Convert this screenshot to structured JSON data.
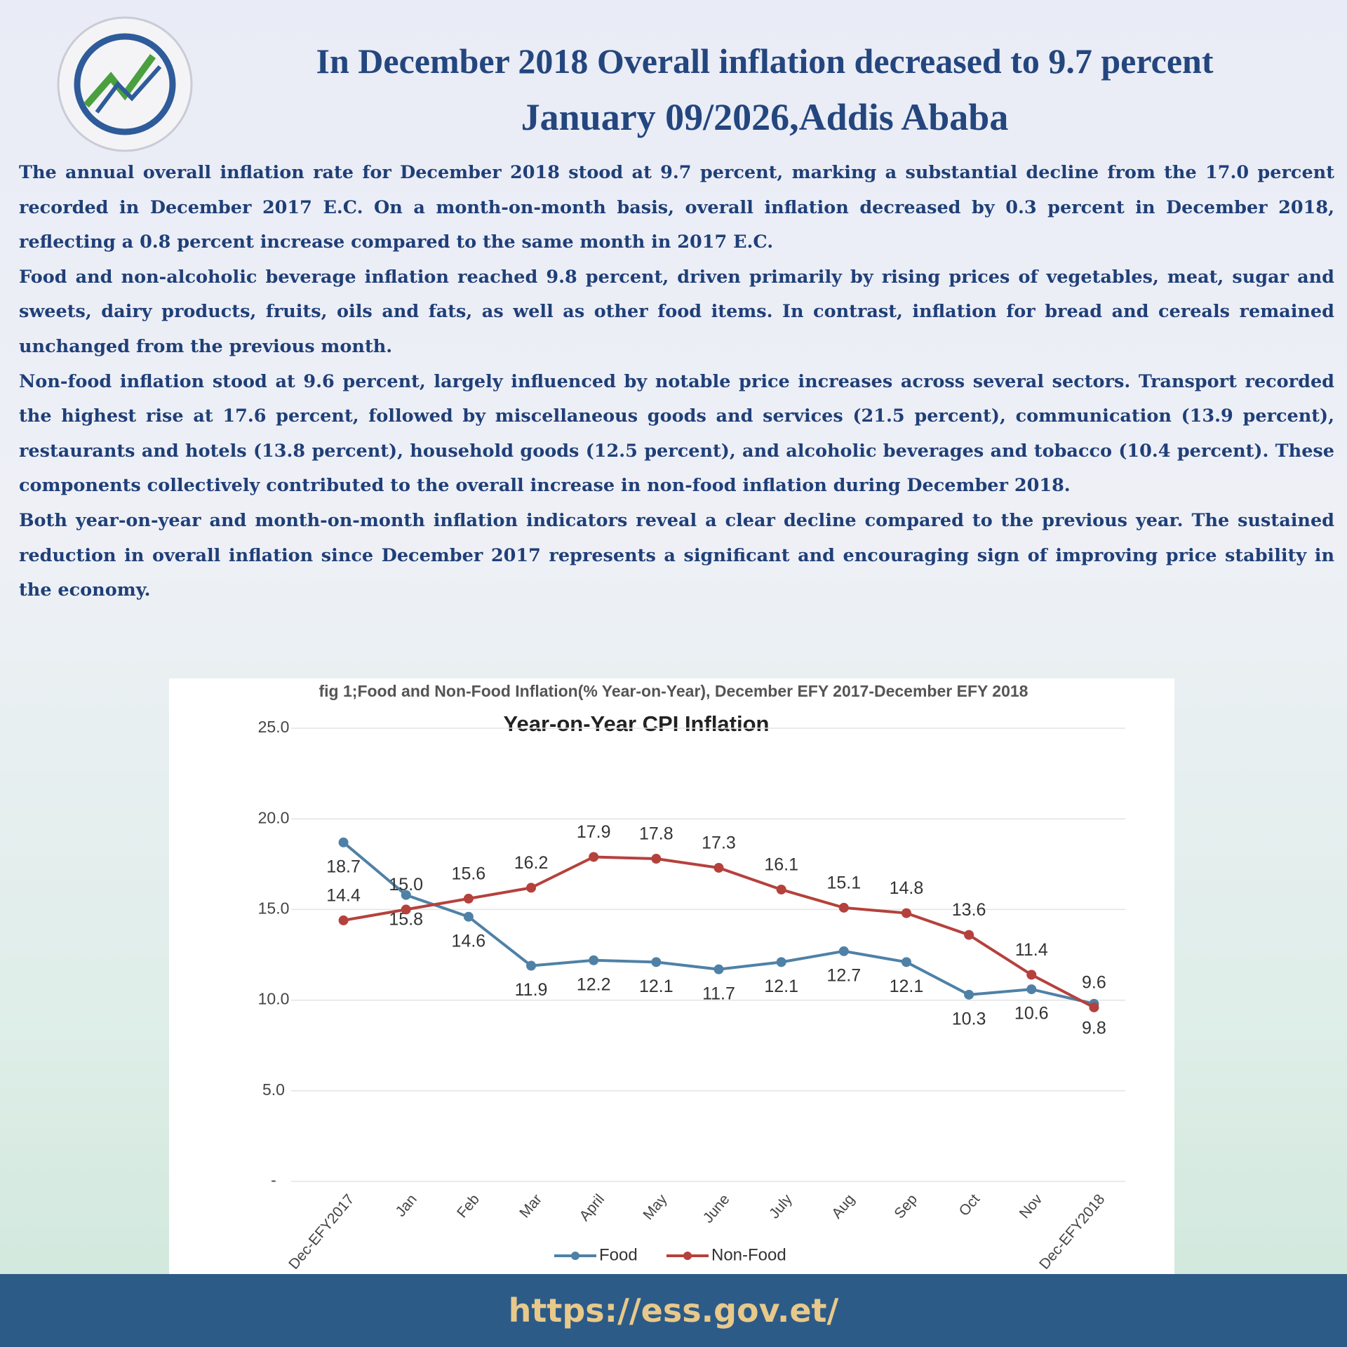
{
  "header": {
    "title": "In December 2018 Overall inflation decreased to 9.7 percent",
    "dateline": "January  09/2026,Addis Ababa"
  },
  "body": {
    "paragraphs": [
      "The annual overall inflation rate for December 2018 stood at 9.7 percent, marking a substantial decline from the 17.0 percent recorded in December 2017 E.C. On a month-on-month basis, overall inflation decreased by 0.3 percent in December 2018, reflecting a 0.8 percent increase compared to the same month in 2017 E.C.",
      "Food and non-alcoholic beverage inflation reached 9.8 percent, driven primarily by rising prices of vegetables, meat, sugar and sweets, dairy products, fruits, oils and fats, as well as other food items. In contrast, inflation for bread and cereals remained unchanged from the previous month.",
      "Non-food inflation stood at 9.6 percent, largely influenced by notable price increases across several sectors. Transport recorded the highest rise at 17.6 percent, followed by miscellaneous goods and services (21.5 percent), communication (13.9 percent), restaurants and hotels (13.8 percent), household goods (12.5 percent), and alcoholic beverages and tobacco (10.4 percent). These components collectively contributed to the overall increase in non-food inflation during December 2018.",
      "Both year-on-year and month-on-month inflation indicators reveal a clear decline compared to the previous year. The sustained reduction in overall inflation since December 2017 represents a significant and encouraging sign of improving price stability in the economy."
    ]
  },
  "chart_data": {
    "type": "line",
    "caption": "fig 1;Food and Non-Food Inflation(% Year-on-Year), December EFY 2017-December EFY 2018",
    "title": "Year-on-Year CPI Inflation",
    "categories": [
      "Dec-EFY2017",
      "Jan",
      "Feb",
      "Mar",
      "April",
      "May",
      "June",
      "July",
      "Aug",
      "Sep",
      "Oct",
      "Nov",
      "Dec-EFY2018"
    ],
    "series": [
      {
        "name": "Food",
        "color": "#4f81a6",
        "values": [
          18.7,
          15.8,
          14.6,
          11.9,
          12.2,
          12.1,
          11.7,
          12.1,
          12.7,
          12.1,
          10.3,
          10.6,
          9.8
        ],
        "value_labels": [
          "18.7",
          "15.8",
          "14.6",
          "11.9",
          "12.2",
          "12.1",
          "11.7",
          "12.1",
          "12.7",
          "12.1",
          "10.3",
          "10.6",
          "9.8"
        ]
      },
      {
        "name": "Non-Food",
        "color": "#b5413c",
        "values": [
          14.4,
          15.0,
          15.6,
          16.2,
          17.9,
          17.8,
          17.3,
          16.1,
          15.1,
          14.8,
          13.6,
          11.4,
          9.6
        ],
        "value_labels": [
          "14.4",
          "15.0",
          "15.6",
          "16.2",
          "17.9",
          "17.8",
          "17.3",
          "16.1",
          "15.1",
          "14.8",
          "13.6",
          "11.4",
          "9.6"
        ]
      }
    ],
    "ylim": [
      0,
      25
    ],
    "yticks": [
      {
        "value": 0,
        "label": "-"
      },
      {
        "value": 5,
        "label": "5.0"
      },
      {
        "value": 10,
        "label": "10.0"
      },
      {
        "value": 15,
        "label": "15.0"
      },
      {
        "value": 20,
        "label": "20.0"
      },
      {
        "value": 25,
        "label": "25.0"
      }
    ],
    "grid": true
  },
  "footer": {
    "url": "https://ess.gov.et/"
  }
}
